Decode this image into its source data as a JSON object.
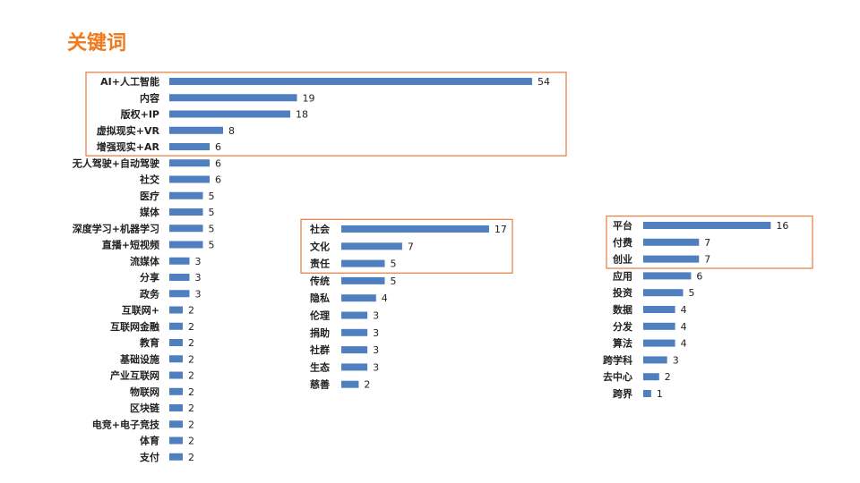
{
  "title": "关键词",
  "colors": {
    "title": "#f07a1e",
    "bar": "#4f7fbf",
    "highlight_border": "#e8844a"
  },
  "chart_data": [
    {
      "type": "bar",
      "orientation": "horizontal",
      "categories": [
        "AI+人工智能",
        "内容",
        "版权+IP",
        "虚拟现实+VR",
        "增强现实+AR",
        "无人驾驶+自动驾驶",
        "社交",
        "医疗",
        "媒体",
        "深度学习+机器学习",
        "直播+短视频",
        "流媒体",
        "分享",
        "政务",
        "互联网+",
        "互联网金融",
        "教育",
        "基础设施",
        "产业互联网",
        "物联网",
        "区块链",
        "电竞+电子竞技",
        "体育",
        "支付"
      ],
      "values": [
        54,
        19,
        18,
        8,
        6,
        6,
        6,
        5,
        5,
        5,
        5,
        3,
        3,
        3,
        2,
        2,
        2,
        2,
        2,
        2,
        2,
        2,
        2,
        2
      ],
      "highlighted": [
        "AI+人工智能",
        "内容",
        "版权+IP",
        "虚拟现实+VR",
        "增强现实+AR"
      ]
    },
    {
      "type": "bar",
      "orientation": "horizontal",
      "categories": [
        "社会",
        "文化",
        "责任",
        "传统",
        "隐私",
        "伦理",
        "捐助",
        "社群",
        "生态",
        "慈善"
      ],
      "values": [
        17,
        7,
        5,
        5,
        4,
        3,
        3,
        3,
        3,
        2
      ],
      "highlighted": [
        "社会",
        "文化",
        "责任"
      ]
    },
    {
      "type": "bar",
      "orientation": "horizontal",
      "categories": [
        "平台",
        "付费",
        "创业",
        "应用",
        "投资",
        "数据",
        "分发",
        "算法",
        "跨学科",
        "去中心",
        "跨界"
      ],
      "values": [
        16,
        7,
        7,
        6,
        5,
        4,
        4,
        4,
        3,
        2,
        1
      ],
      "highlighted": [
        "平台",
        "付费",
        "创业"
      ]
    }
  ]
}
